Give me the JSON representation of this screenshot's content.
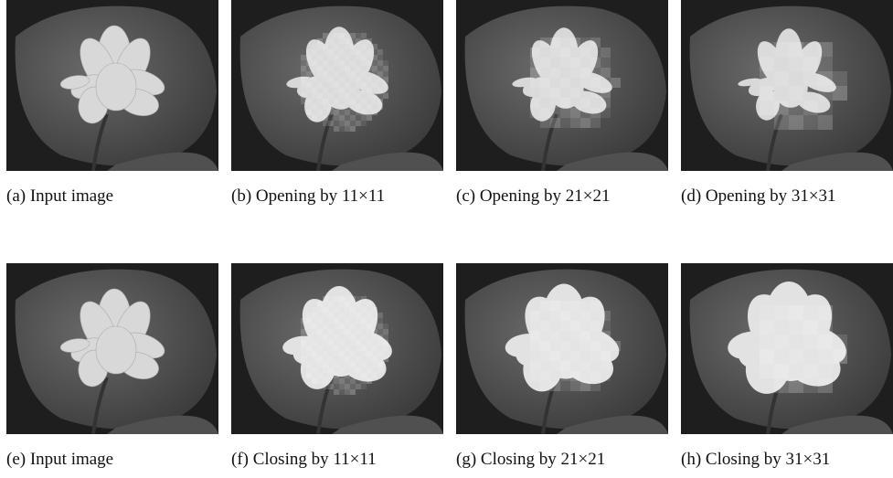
{
  "figure": {
    "panels": [
      {
        "caption": "(a) Input image"
      },
      {
        "caption": "(b) Opening by 11×11"
      },
      {
        "caption": "(c) Opening by 21×21"
      },
      {
        "caption": "(d) Opening by 31×31"
      },
      {
        "caption": "(e) Input image"
      },
      {
        "caption": "(f) Closing by 11×11"
      },
      {
        "caption": "(g) Closing by 21×21"
      },
      {
        "caption": "(h) Closing by 31×31"
      }
    ]
  }
}
